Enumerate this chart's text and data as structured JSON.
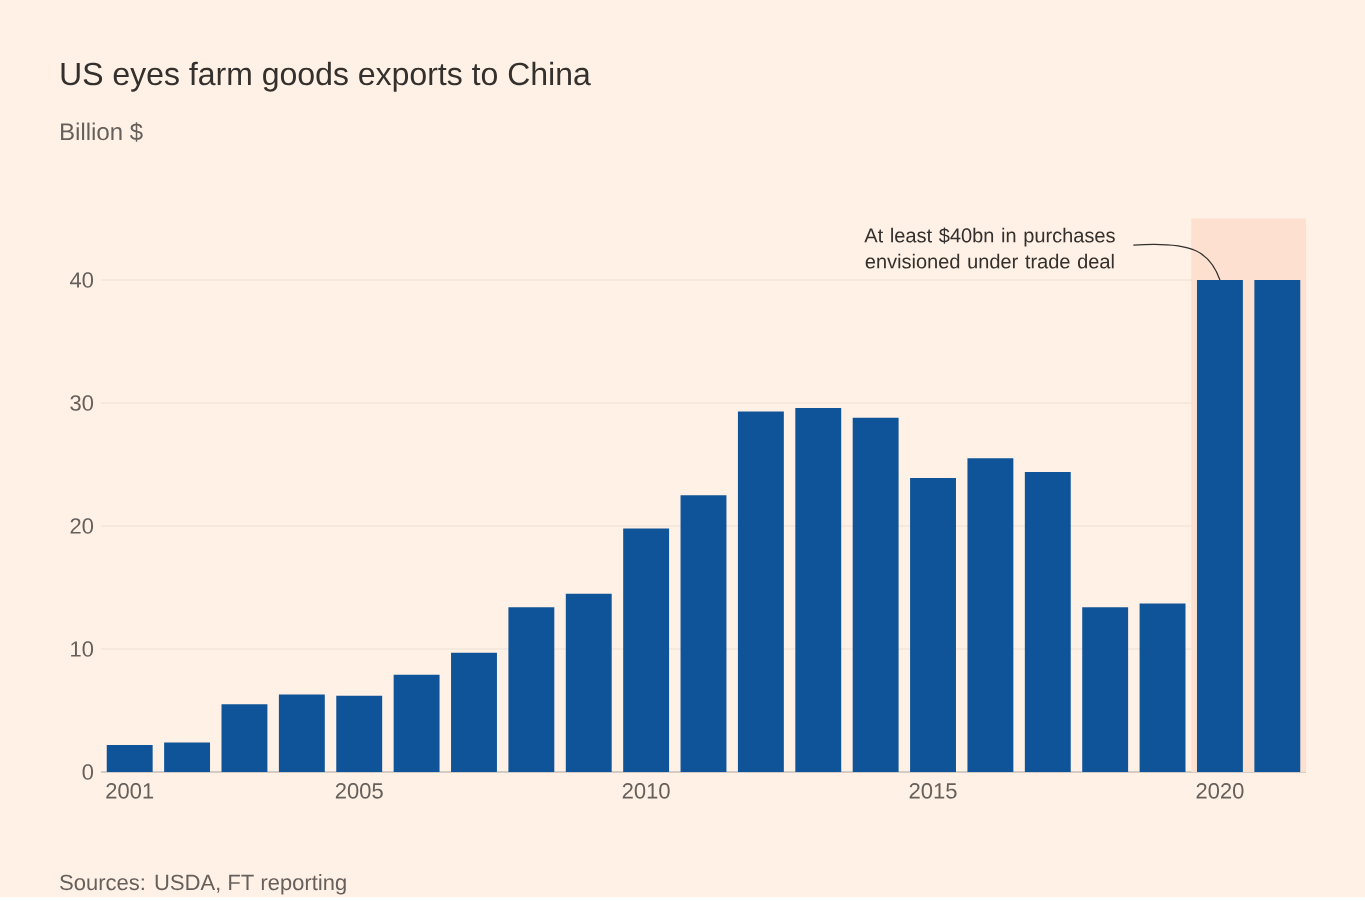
{
  "chart_data": {
    "type": "bar",
    "title": "US eyes farm goods exports to China",
    "subtitle": "Billion $",
    "x": [
      2001,
      2002,
      2003,
      2004,
      2005,
      2006,
      2007,
      2008,
      2009,
      2010,
      2011,
      2012,
      2013,
      2014,
      2015,
      2016,
      2017,
      2018,
      2019,
      2020,
      2021
    ],
    "values": [
      2.2,
      2.4,
      5.5,
      6.3,
      6.2,
      7.9,
      9.7,
      13.4,
      14.5,
      19.8,
      22.5,
      29.3,
      29.6,
      28.8,
      23.9,
      25.5,
      24.4,
      13.4,
      13.7,
      40,
      40
    ],
    "color": "#0f5499",
    "xlim": [
      2000.5,
      2021.5
    ],
    "ylim": [
      0,
      45
    ],
    "xticks": [
      2001,
      {
        "value": 2002,
        "label": null
      },
      {
        "value": 2003,
        "label": null
      },
      {
        "value": 2004,
        "label": null
      },
      2005,
      {
        "value": 2006,
        "label": null
      },
      {
        "value": 2007,
        "label": null
      },
      {
        "value": 2008,
        "label": null
      },
      {
        "value": 2009,
        "label": null
      },
      2010,
      {
        "value": 2011,
        "label": null
      },
      {
        "value": 2012,
        "label": null
      },
      {
        "value": 2013,
        "label": null
      },
      {
        "value": 2014,
        "label": null
      },
      2015,
      {
        "value": 2016,
        "label": null
      },
      {
        "value": 2017,
        "label": null
      },
      {
        "value": 2018,
        "label": null
      },
      {
        "value": 2019,
        "label": null
      },
      2020,
      {
        "value": 2021,
        "label": null
      }
    ],
    "yticks": [
      0,
      10,
      20,
      30,
      40
    ],
    "grid": "y",
    "bands": [
      {
        "axis": "x",
        "from": 2019.5,
        "to": 2021.5,
        "color": "#fde0d0"
      }
    ],
    "annotations": [
      {
        "text": "At least $40bn in purchases envisioned under trade deal",
        "x": 2020,
        "y": 40
      },
      "Sources: USDA, FT reporting"
    ]
  }
}
